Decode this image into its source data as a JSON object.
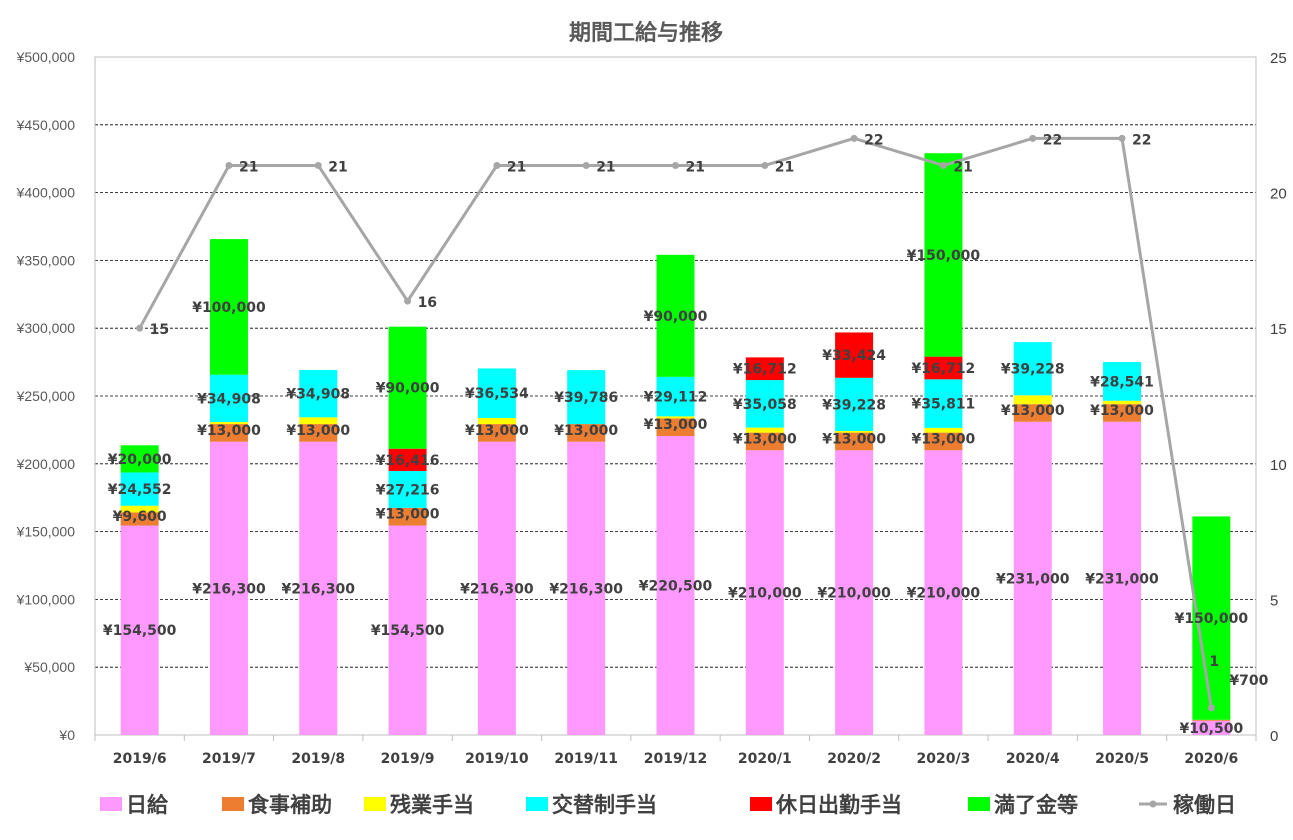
{
  "chart_data": {
    "type": "bar",
    "stacked": true,
    "title": "期間工給与推移",
    "categories": [
      "2019/6",
      "2019/7",
      "2019/8",
      "2019/9",
      "2019/10",
      "2019/11",
      "2019/12",
      "2020/1",
      "2020/2",
      "2020/3",
      "2020/4",
      "2020/5",
      "2020/6"
    ],
    "ylim": [
      0,
      500000
    ],
    "yticks": [
      0,
      50000,
      100000,
      150000,
      200000,
      250000,
      300000,
      350000,
      400000,
      450000,
      500000
    ],
    "ytick_labels": [
      "¥0",
      "¥50,000",
      "¥100,000",
      "¥150,000",
      "¥200,000",
      "¥250,000",
      "¥300,000",
      "¥350,000",
      "¥400,000",
      "¥450,000",
      "¥500,000"
    ],
    "y2lim": [
      0,
      25
    ],
    "y2ticks": [
      0,
      5,
      10,
      15,
      20,
      25
    ],
    "y2tick_labels": [
      "0",
      "5",
      "10",
      "15",
      "20",
      "25"
    ],
    "grid": true,
    "legend_position": "bottom",
    "series": [
      {
        "name": "日給",
        "color": "#ff99ff",
        "values": [
          154500,
          216300,
          216300,
          154500,
          216300,
          216300,
          220500,
          210000,
          210000,
          210000,
          231000,
          231000,
          10500
        ],
        "labels": [
          "¥154,500",
          "¥216,300",
          "¥216,300",
          "¥154,500",
          "¥216,300",
          "¥216,300",
          "¥220,500",
          "¥210,000",
          "¥210,000",
          "¥210,000",
          "¥231,000",
          "¥231,000",
          "¥10,500"
        ]
      },
      {
        "name": "食事補助",
        "color": "#ed7d31",
        "values": [
          9600,
          13000,
          13000,
          13000,
          13000,
          13000,
          13000,
          13000,
          13000,
          13000,
          13000,
          13000,
          700
        ],
        "labels": [
          "¥9,600",
          "¥13,000",
          "¥13,000",
          "¥13,000",
          "¥13,000",
          "¥13,000",
          "¥13,000",
          "¥13,000",
          "¥13,000",
          "¥13,000",
          "¥13,000",
          "¥13,000",
          "¥700"
        ]
      },
      {
        "name": "残業手当",
        "color": "#ffff00",
        "values": [
          5000,
          1500,
          5000,
          0,
          4500,
          0,
          1500,
          3700,
          1200,
          3500,
          6500,
          2500,
          0
        ],
        "labels": [
          "",
          "",
          "",
          "",
          "",
          "",
          "",
          "",
          "",
          "",
          "",
          "",
          ""
        ]
      },
      {
        "name": "交替制手当",
        "color": "#00ffff",
        "values": [
          24552,
          34908,
          34908,
          27216,
          36534,
          39786,
          29112,
          35058,
          39228,
          35811,
          39228,
          28541,
          0
        ],
        "labels": [
          "¥24,552",
          "¥34,908",
          "¥34,908",
          "¥27,216",
          "¥36,534",
          "¥39,786",
          "¥29,112",
          "¥35,058",
          "¥39,228",
          "¥35,811",
          "¥39,228",
          "¥28,541",
          ""
        ]
      },
      {
        "name": "休日出勤手当",
        "color": "#ff0000",
        "values": [
          0,
          0,
          0,
          16416,
          0,
          0,
          0,
          16712,
          33424,
          16712,
          0,
          0,
          0
        ],
        "labels": [
          "",
          "",
          "",
          "¥16,416",
          "",
          "",
          "",
          "¥16,712",
          "¥33,424",
          "¥16,712",
          "",
          "",
          ""
        ]
      },
      {
        "name": "満了金等",
        "color": "#00ff00",
        "values": [
          20000,
          100000,
          0,
          90000,
          0,
          0,
          90000,
          0,
          0,
          150000,
          0,
          0,
          150000
        ],
        "labels": [
          "¥20,000",
          "¥100,000",
          "",
          "¥90,000",
          "",
          "",
          "¥90,000",
          "",
          "",
          "¥150,000",
          "",
          "",
          "¥150,000"
        ]
      }
    ],
    "line_series": {
      "name": "稼働日",
      "color": "#a6a6a6",
      "axis": "y2",
      "values": [
        15,
        21,
        21,
        16,
        21,
        21,
        21,
        21,
        22,
        21,
        22,
        22,
        1
      ],
      "labels": [
        "15",
        "21",
        "21",
        "16",
        "21",
        "21",
        "21",
        "21",
        "22",
        "21",
        "22",
        "22",
        "1"
      ]
    }
  }
}
